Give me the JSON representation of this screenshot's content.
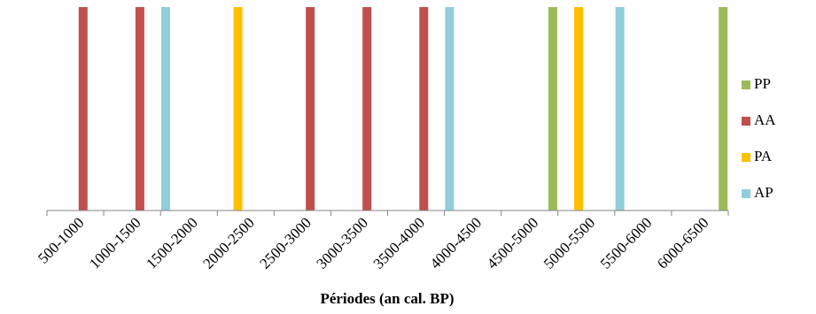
{
  "chart_data": {
    "type": "bar",
    "title": "",
    "xlabel": "Périodes (an cal. BP)",
    "ylabel": "",
    "categories": [
      "500-1000",
      "1000-1500",
      "1500-2000",
      "2000-2500",
      "2500-3000",
      "3000-3500",
      "3500-4000",
      "4000-4500",
      "4500-5000",
      "5000-5500",
      "5500-6000",
      "6000-6500"
    ],
    "series": [
      {
        "name": "AP",
        "color": "#92CDDC",
        "values": [
          0,
          0,
          1,
          0,
          0,
          0,
          0,
          1,
          0,
          0,
          1,
          0
        ]
      },
      {
        "name": "PA",
        "color": "#FFC000",
        "values": [
          0,
          0,
          0,
          1,
          0,
          0,
          0,
          0,
          0,
          1,
          0,
          0
        ]
      },
      {
        "name": "AA",
        "color": "#C0504D",
        "values": [
          1,
          1,
          0,
          0,
          1,
          1,
          1,
          0,
          0,
          0,
          0,
          0
        ]
      },
      {
        "name": "PP",
        "color": "#9BBB59",
        "values": [
          0,
          0,
          0,
          0,
          0,
          0,
          0,
          0,
          1,
          0,
          0,
          1
        ]
      }
    ],
    "ylim": [
      0,
      1
    ],
    "grid": false,
    "legend": {
      "position": "right",
      "order": [
        "PP",
        "AA",
        "PA",
        "AP"
      ]
    }
  }
}
